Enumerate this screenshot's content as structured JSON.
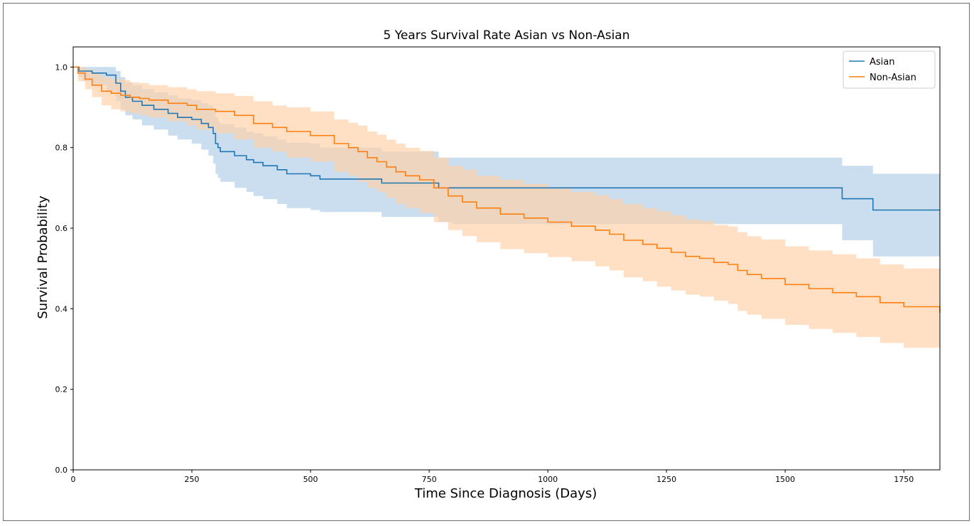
{
  "chart_data": {
    "type": "line",
    "title": "5 Years Survival Rate Asian vs Non-Asian",
    "xlabel": "Time Since Diagnosis (Days)",
    "ylabel": "Survival Probability",
    "xlim": [
      0,
      1826
    ],
    "ylim": [
      0.0,
      1.05
    ],
    "xticks": [
      0,
      250,
      500,
      750,
      1000,
      1250,
      1500,
      1750
    ],
    "yticks": [
      0.0,
      0.2,
      0.4,
      0.6,
      0.8,
      1.0
    ],
    "xtick_labels": [
      "0",
      "250",
      "500",
      "750",
      "1000",
      "1250",
      "1500",
      "1750"
    ],
    "ytick_labels": [
      "0.0",
      "0.2",
      "0.4",
      "0.6",
      "0.8",
      "1.0"
    ],
    "grid": false,
    "legend_position": "top-right",
    "step": "post",
    "series": [
      {
        "name": "Asian",
        "color": "#1f77b4",
        "band_color": "#aecde7",
        "x": [
          0,
          12,
          20,
          40,
          70,
          90,
          100,
          110,
          125,
          145,
          170,
          200,
          220,
          250,
          270,
          285,
          295,
          300,
          305,
          310,
          340,
          365,
          380,
          400,
          430,
          450,
          500,
          520,
          570,
          650,
          700,
          770,
          800,
          1000,
          1250,
          1500,
          1620,
          1685,
          1826
        ],
        "y": [
          1.0,
          0.99,
          0.99,
          0.985,
          0.98,
          0.96,
          0.94,
          0.925,
          0.915,
          0.905,
          0.895,
          0.885,
          0.875,
          0.87,
          0.86,
          0.85,
          0.835,
          0.81,
          0.8,
          0.79,
          0.78,
          0.77,
          0.763,
          0.755,
          0.745,
          0.735,
          0.73,
          0.722,
          0.722,
          0.712,
          0.712,
          0.7,
          0.7,
          0.7,
          0.7,
          0.7,
          0.673,
          0.645,
          0.645
        ],
        "lower": [
          1.0,
          0.975,
          0.965,
          0.955,
          0.94,
          0.915,
          0.895,
          0.88,
          0.87,
          0.855,
          0.845,
          0.83,
          0.82,
          0.81,
          0.795,
          0.78,
          0.76,
          0.735,
          0.725,
          0.715,
          0.7,
          0.69,
          0.68,
          0.672,
          0.66,
          0.65,
          0.645,
          0.64,
          0.64,
          0.628,
          0.628,
          0.615,
          0.61,
          0.61,
          0.61,
          0.61,
          0.57,
          0.53,
          0.53
        ],
        "upper": [
          1.0,
          1.0,
          1.0,
          1.0,
          1.0,
          0.99,
          0.975,
          0.962,
          0.955,
          0.945,
          0.937,
          0.93,
          0.922,
          0.918,
          0.91,
          0.905,
          0.895,
          0.875,
          0.865,
          0.858,
          0.85,
          0.84,
          0.835,
          0.828,
          0.82,
          0.812,
          0.81,
          0.8,
          0.8,
          0.79,
          0.79,
          0.775,
          0.775,
          0.775,
          0.775,
          0.775,
          0.755,
          0.735,
          0.735
        ]
      },
      {
        "name": "Non-Asian",
        "color": "#ff7f0e",
        "band_color": "#ffd0a6",
        "x": [
          0,
          10,
          25,
          40,
          60,
          80,
          100,
          120,
          140,
          160,
          200,
          240,
          260,
          300,
          340,
          380,
          420,
          450,
          500,
          550,
          580,
          600,
          620,
          640,
          660,
          680,
          700,
          730,
          760,
          790,
          820,
          850,
          900,
          950,
          1000,
          1050,
          1100,
          1130,
          1160,
          1200,
          1230,
          1260,
          1290,
          1320,
          1350,
          1380,
          1400,
          1420,
          1450,
          1500,
          1550,
          1600,
          1650,
          1700,
          1750,
          1826
        ],
        "y": [
          1.0,
          0.985,
          0.97,
          0.955,
          0.94,
          0.935,
          0.93,
          0.925,
          0.922,
          0.918,
          0.91,
          0.905,
          0.895,
          0.89,
          0.88,
          0.86,
          0.85,
          0.84,
          0.83,
          0.81,
          0.8,
          0.79,
          0.775,
          0.765,
          0.752,
          0.74,
          0.73,
          0.72,
          0.7,
          0.68,
          0.665,
          0.65,
          0.635,
          0.625,
          0.615,
          0.605,
          0.595,
          0.585,
          0.57,
          0.56,
          0.55,
          0.54,
          0.53,
          0.525,
          0.515,
          0.51,
          0.495,
          0.485,
          0.475,
          0.46,
          0.45,
          0.44,
          0.43,
          0.415,
          0.405,
          0.39
        ],
        "lower": [
          1.0,
          0.965,
          0.945,
          0.925,
          0.905,
          0.895,
          0.89,
          0.885,
          0.88,
          0.875,
          0.865,
          0.855,
          0.845,
          0.835,
          0.82,
          0.8,
          0.79,
          0.775,
          0.765,
          0.74,
          0.73,
          0.715,
          0.7,
          0.69,
          0.675,
          0.66,
          0.65,
          0.638,
          0.615,
          0.595,
          0.58,
          0.565,
          0.548,
          0.538,
          0.528,
          0.518,
          0.505,
          0.495,
          0.478,
          0.468,
          0.455,
          0.445,
          0.435,
          0.43,
          0.42,
          0.412,
          0.395,
          0.385,
          0.375,
          0.36,
          0.35,
          0.34,
          0.33,
          0.315,
          0.303,
          0.285
        ],
        "upper": [
          1.0,
          1.0,
          0.995,
          0.985,
          0.975,
          0.97,
          0.968,
          0.962,
          0.96,
          0.955,
          0.95,
          0.945,
          0.94,
          0.935,
          0.928,
          0.915,
          0.905,
          0.9,
          0.89,
          0.87,
          0.862,
          0.855,
          0.84,
          0.832,
          0.82,
          0.81,
          0.8,
          0.792,
          0.775,
          0.755,
          0.745,
          0.73,
          0.72,
          0.71,
          0.7,
          0.69,
          0.682,
          0.672,
          0.66,
          0.65,
          0.642,
          0.632,
          0.622,
          0.618,
          0.608,
          0.604,
          0.59,
          0.58,
          0.572,
          0.555,
          0.545,
          0.535,
          0.525,
          0.51,
          0.5,
          0.49
        ]
      }
    ]
  }
}
